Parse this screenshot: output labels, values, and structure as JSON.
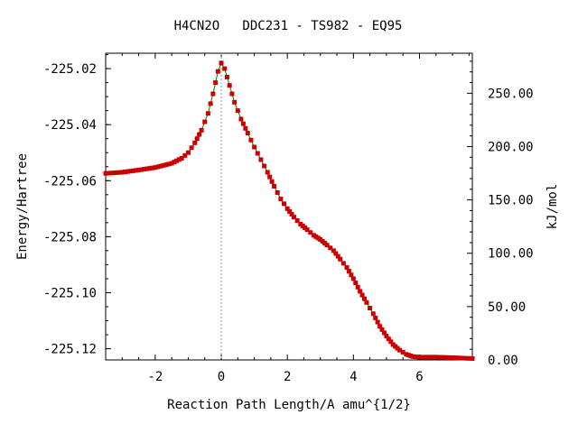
{
  "chart_data": {
    "type": "line",
    "title": "H4CN2O   DDC231 - TS982 - EQ95",
    "xlabel": "Reaction Path Length/A amu^{1/2}",
    "ylabel": "Energy/Hartree",
    "y2label": "kJ/mol",
    "xlim": [
      -3.5,
      7.6
    ],
    "ylim": [
      -225.124,
      -225.0145
    ],
    "y2lim": [
      0,
      287.5
    ],
    "x_ticks": [
      -2,
      0,
      2,
      4,
      6
    ],
    "x_tick_labels": [
      "-2",
      "0",
      "2",
      "4",
      "6"
    ],
    "y_ticks": [
      -225.02,
      -225.04,
      -225.06,
      -225.08,
      -225.1,
      -225.12
    ],
    "y_tick_labels": [
      "-225.02",
      "-225.04",
      "-225.06",
      "-225.08",
      "-225.10",
      "-225.12"
    ],
    "y2_ticks": [
      0,
      50,
      100,
      150,
      200,
      250
    ],
    "y2_tick_labels": [
      "0.00",
      "50.00",
      "100.00",
      "150.00",
      "200.00",
      "250.00"
    ],
    "ts_marker_x": 0,
    "series": [
      {
        "line_color": "#008000",
        "marker_color": "#cc0000",
        "x": [
          -3.5,
          -3.0,
          -2.5,
          -2.0,
          -1.5,
          -1.2,
          -1.0,
          -0.8,
          -0.6,
          -0.4,
          -0.25,
          -0.1,
          0.0,
          0.1,
          0.25,
          0.4,
          0.6,
          0.8,
          1.0,
          1.2,
          1.4,
          1.6,
          1.8,
          2.0,
          2.2,
          2.4,
          2.6,
          2.8,
          3.0,
          3.2,
          3.4,
          3.6,
          3.8,
          4.0,
          4.2,
          4.4,
          4.6,
          4.8,
          5.0,
          5.2,
          5.4,
          5.6,
          5.8,
          6.0,
          6.5,
          7.0,
          7.6
        ],
        "y": [
          -225.0574,
          -225.057,
          -225.0562,
          -225.0553,
          -225.0538,
          -225.052,
          -225.05,
          -225.0465,
          -225.042,
          -225.036,
          -225.029,
          -225.021,
          -225.018,
          -225.02,
          -225.026,
          -225.032,
          -225.038,
          -225.043,
          -225.048,
          -225.0525,
          -225.057,
          -225.062,
          -225.0665,
          -225.07,
          -225.073,
          -225.0755,
          -225.0775,
          -225.0795,
          -225.081,
          -225.083,
          -225.085,
          -225.088,
          -225.091,
          -225.095,
          -225.0995,
          -225.1035,
          -225.1075,
          -225.112,
          -225.1155,
          -225.1185,
          -225.1205,
          -225.122,
          -225.1228,
          -225.123,
          -225.123,
          -225.1232,
          -225.1235
        ]
      }
    ]
  }
}
